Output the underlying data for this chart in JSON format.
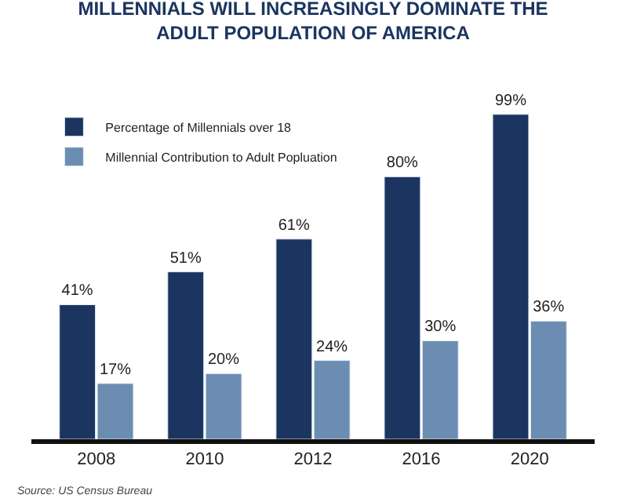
{
  "chart_data": {
    "type": "bar",
    "title": "MILLENNIALS WILL INCREASINGLY DOMINATE THE ADULT POPULATION OF AMERICA",
    "categories": [
      "2008",
      "2010",
      "2012",
      "2016",
      "2020"
    ],
    "series": [
      {
        "name": "Percentage of Millennials over 18",
        "color": "#1b3560",
        "values": [
          41,
          51,
          61,
          80,
          99
        ],
        "value_labels": [
          "41%",
          "51%",
          "61%",
          "80%",
          "99%"
        ]
      },
      {
        "name": "Millennial Contribution to Adult Popluation",
        "color": "#6b8db2",
        "values": [
          17,
          20,
          24,
          30,
          36
        ],
        "value_labels": [
          "17%",
          "20%",
          "24%",
          "30%",
          "36%"
        ]
      }
    ],
    "legend": "top left",
    "annotations": [
      "Source: US Census Bureau"
    ]
  }
}
